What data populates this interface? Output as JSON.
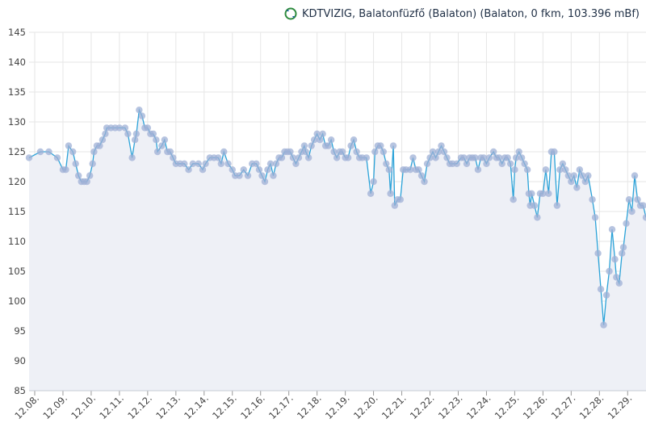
{
  "title": {
    "text": "KDTVIZIG, Balatonfüzfő (Balaton) (Balaton, 0 fkm, 103.396 mBf)",
    "icon": "refresh-icon"
  },
  "chart_data": {
    "type": "line",
    "title": "KDTVIZIG, Balatonfüzfő (Balaton) (Balaton, 0 fkm, 103.396 mBf)",
    "xlabel": "",
    "ylabel": "",
    "ylim": [
      85,
      145
    ],
    "yticks": [
      85,
      90,
      95,
      100,
      105,
      110,
      115,
      120,
      125,
      130,
      135,
      140,
      145
    ],
    "xlim": [
      -0.2,
      21.65
    ],
    "xticks": [
      {
        "x": 0,
        "label": "12.08."
      },
      {
        "x": 1,
        "label": "12.09."
      },
      {
        "x": 2,
        "label": "12.10."
      },
      {
        "x": 3,
        "label": "12.11."
      },
      {
        "x": 4,
        "label": "12.12."
      },
      {
        "x": 5,
        "label": "12.13."
      },
      {
        "x": 6,
        "label": "12.14."
      },
      {
        "x": 7,
        "label": "12.15."
      },
      {
        "x": 8,
        "label": "12.16."
      },
      {
        "x": 9,
        "label": "12.17."
      },
      {
        "x": 10,
        "label": "12.18."
      },
      {
        "x": 11,
        "label": "12.19."
      },
      {
        "x": 12,
        "label": "12.20."
      },
      {
        "x": 13,
        "label": "12.21."
      },
      {
        "x": 14,
        "label": "12.22."
      },
      {
        "x": 15,
        "label": "12.23."
      },
      {
        "x": 16,
        "label": "12.24."
      },
      {
        "x": 17,
        "label": "12.25."
      },
      {
        "x": 18,
        "label": "12.26."
      },
      {
        "x": 19,
        "label": "12.27."
      },
      {
        "x": 20,
        "label": "12.28."
      },
      {
        "x": 21,
        "label": "12.29."
      }
    ],
    "grid": true,
    "colors": {
      "line": "#2aa2d8",
      "marker": "#9fb0d6",
      "area": "#eef0f6",
      "grid": "#e6e6e6"
    },
    "series": [
      {
        "values": [
          [
            -0.2,
            124
          ],
          [
            0.2,
            125
          ],
          [
            0.5,
            125
          ],
          [
            0.8,
            124
          ],
          [
            1.0,
            122
          ],
          [
            1.1,
            122
          ],
          [
            1.2,
            126
          ],
          [
            1.35,
            125
          ],
          [
            1.45,
            123
          ],
          [
            1.55,
            121
          ],
          [
            1.65,
            120
          ],
          [
            1.75,
            120
          ],
          [
            1.85,
            120
          ],
          [
            1.95,
            121
          ],
          [
            2.05,
            123
          ],
          [
            2.1,
            125
          ],
          [
            2.2,
            126
          ],
          [
            2.3,
            126
          ],
          [
            2.4,
            127
          ],
          [
            2.5,
            128
          ],
          [
            2.55,
            129
          ],
          [
            2.7,
            129
          ],
          [
            2.85,
            129
          ],
          [
            3.0,
            129
          ],
          [
            3.2,
            129
          ],
          [
            3.3,
            128
          ],
          [
            3.45,
            124
          ],
          [
            3.55,
            127
          ],
          [
            3.6,
            128
          ],
          [
            3.7,
            132
          ],
          [
            3.8,
            131
          ],
          [
            3.9,
            129
          ],
          [
            4.0,
            129
          ],
          [
            4.1,
            128
          ],
          [
            4.2,
            128
          ],
          [
            4.3,
            127
          ],
          [
            4.35,
            125
          ],
          [
            4.5,
            126
          ],
          [
            4.6,
            127
          ],
          [
            4.7,
            125
          ],
          [
            4.8,
            125
          ],
          [
            4.9,
            124
          ],
          [
            5.0,
            123
          ],
          [
            5.15,
            123
          ],
          [
            5.3,
            123
          ],
          [
            5.45,
            122
          ],
          [
            5.6,
            123
          ],
          [
            5.8,
            123
          ],
          [
            5.95,
            122
          ],
          [
            6.05,
            123
          ],
          [
            6.2,
            124
          ],
          [
            6.35,
            124
          ],
          [
            6.5,
            124
          ],
          [
            6.6,
            123
          ],
          [
            6.7,
            125
          ],
          [
            6.85,
            123
          ],
          [
            7.0,
            122
          ],
          [
            7.1,
            121
          ],
          [
            7.25,
            121
          ],
          [
            7.4,
            122
          ],
          [
            7.55,
            121
          ],
          [
            7.7,
            123
          ],
          [
            7.85,
            123
          ],
          [
            7.95,
            122
          ],
          [
            8.05,
            121
          ],
          [
            8.15,
            120
          ],
          [
            8.25,
            122
          ],
          [
            8.35,
            123
          ],
          [
            8.45,
            121
          ],
          [
            8.55,
            123
          ],
          [
            8.65,
            124
          ],
          [
            8.75,
            124
          ],
          [
            8.85,
            125
          ],
          [
            8.95,
            125
          ],
          [
            9.05,
            125
          ],
          [
            9.15,
            124
          ],
          [
            9.25,
            123
          ],
          [
            9.35,
            124
          ],
          [
            9.45,
            125
          ],
          [
            9.55,
            126
          ],
          [
            9.6,
            125
          ],
          [
            9.7,
            124
          ],
          [
            9.8,
            126
          ],
          [
            9.9,
            127
          ],
          [
            10.0,
            128
          ],
          [
            10.1,
            127
          ],
          [
            10.2,
            128
          ],
          [
            10.3,
            126
          ],
          [
            10.4,
            126
          ],
          [
            10.5,
            127
          ],
          [
            10.6,
            125
          ],
          [
            10.7,
            124
          ],
          [
            10.8,
            125
          ],
          [
            10.9,
            125
          ],
          [
            11.0,
            124
          ],
          [
            11.1,
            124
          ],
          [
            11.2,
            126
          ],
          [
            11.3,
            127
          ],
          [
            11.4,
            125
          ],
          [
            11.5,
            124
          ],
          [
            11.6,
            124
          ],
          [
            11.75,
            124
          ],
          [
            11.9,
            118
          ],
          [
            12.0,
            120
          ],
          [
            12.05,
            125
          ],
          [
            12.15,
            126
          ],
          [
            12.25,
            126
          ],
          [
            12.35,
            125
          ],
          [
            12.45,
            123
          ],
          [
            12.55,
            122
          ],
          [
            12.6,
            118
          ],
          [
            12.7,
            126
          ],
          [
            12.75,
            116
          ],
          [
            12.85,
            117
          ],
          [
            12.95,
            117
          ],
          [
            13.05,
            122
          ],
          [
            13.15,
            122
          ],
          [
            13.3,
            122
          ],
          [
            13.4,
            124
          ],
          [
            13.5,
            122
          ],
          [
            13.6,
            122
          ],
          [
            13.7,
            121
          ],
          [
            13.8,
            120
          ],
          [
            13.9,
            123
          ],
          [
            14.0,
            124
          ],
          [
            14.1,
            125
          ],
          [
            14.2,
            124
          ],
          [
            14.3,
            125
          ],
          [
            14.4,
            126
          ],
          [
            14.5,
            125
          ],
          [
            14.6,
            124
          ],
          [
            14.7,
            123
          ],
          [
            14.8,
            123
          ],
          [
            14.95,
            123
          ],
          [
            15.1,
            124
          ],
          [
            15.2,
            124
          ],
          [
            15.3,
            123
          ],
          [
            15.4,
            124
          ],
          [
            15.5,
            124
          ],
          [
            15.6,
            124
          ],
          [
            15.7,
            122
          ],
          [
            15.8,
            124
          ],
          [
            15.9,
            124
          ],
          [
            16.0,
            123
          ],
          [
            16.1,
            124
          ],
          [
            16.25,
            125
          ],
          [
            16.35,
            124
          ],
          [
            16.45,
            124
          ],
          [
            16.55,
            123
          ],
          [
            16.65,
            124
          ],
          [
            16.75,
            124
          ],
          [
            16.85,
            123
          ],
          [
            16.95,
            117
          ],
          [
            17.0,
            122
          ],
          [
            17.05,
            124
          ],
          [
            17.15,
            125
          ],
          [
            17.25,
            124
          ],
          [
            17.35,
            123
          ],
          [
            17.45,
            122
          ],
          [
            17.5,
            118
          ],
          [
            17.55,
            116
          ],
          [
            17.6,
            118
          ],
          [
            17.7,
            116
          ],
          [
            17.8,
            114
          ],
          [
            17.9,
            118
          ],
          [
            18.0,
            118
          ],
          [
            18.1,
            122
          ],
          [
            18.2,
            118
          ],
          [
            18.3,
            125
          ],
          [
            18.4,
            125
          ],
          [
            18.5,
            116
          ],
          [
            18.6,
            122
          ],
          [
            18.7,
            123
          ],
          [
            18.8,
            122
          ],
          [
            18.9,
            121
          ],
          [
            19.0,
            120
          ],
          [
            19.1,
            121
          ],
          [
            19.2,
            119
          ],
          [
            19.3,
            122
          ],
          [
            19.4,
            121
          ],
          [
            19.5,
            120
          ],
          [
            19.6,
            121
          ],
          [
            19.75,
            117
          ],
          [
            19.85,
            114
          ],
          [
            19.95,
            108
          ],
          [
            20.05,
            102
          ],
          [
            20.15,
            96
          ],
          [
            20.25,
            101
          ],
          [
            20.35,
            105
          ],
          [
            20.45,
            112
          ],
          [
            20.55,
            107
          ],
          [
            20.6,
            104
          ],
          [
            20.7,
            103
          ],
          [
            20.8,
            108
          ],
          [
            20.85,
            109
          ],
          [
            20.95,
            113
          ],
          [
            21.05,
            117
          ],
          [
            21.15,
            115
          ],
          [
            21.25,
            121
          ],
          [
            21.35,
            117
          ],
          [
            21.45,
            116
          ],
          [
            21.55,
            116
          ],
          [
            21.65,
            114
          ]
        ]
      }
    ]
  }
}
